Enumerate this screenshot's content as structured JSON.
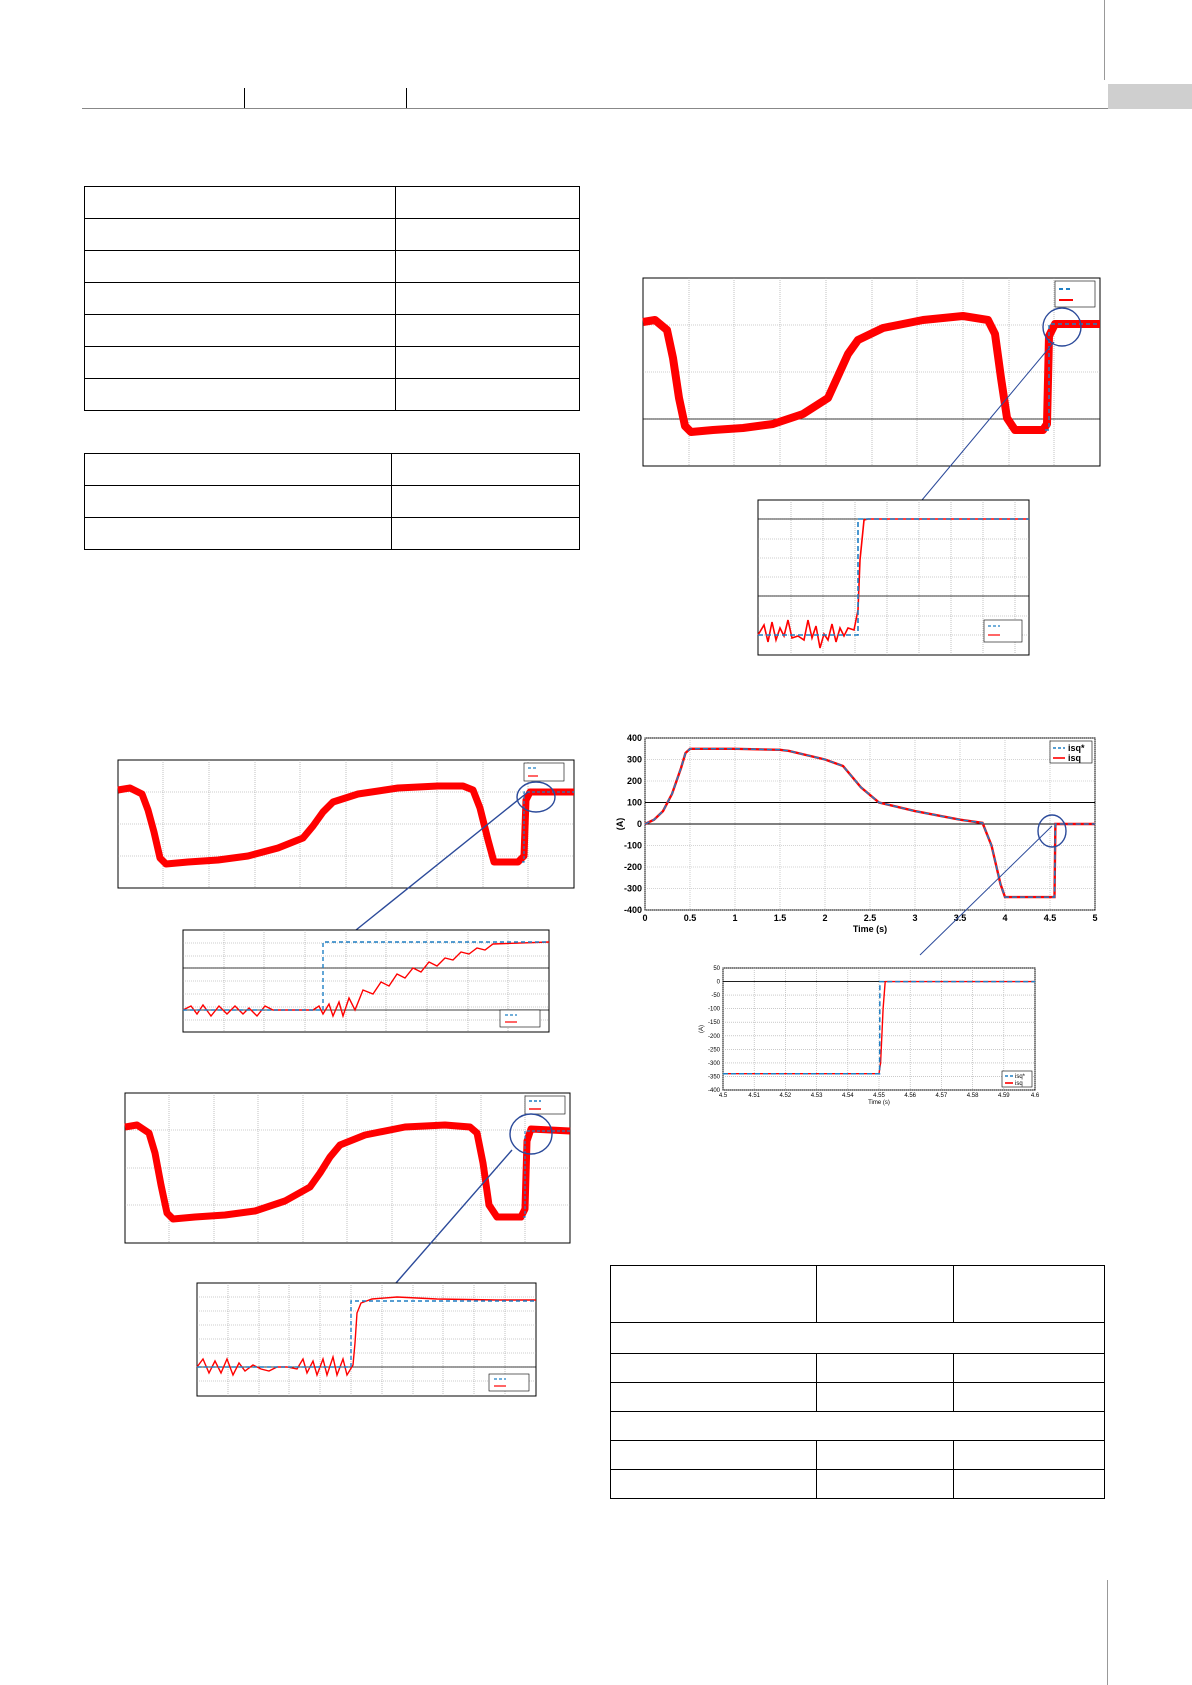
{
  "colors": {
    "reference": "#1f7fc4",
    "measured": "#ff0000",
    "zoom_line": "#2b4a9a",
    "header_tab": "#cfcfcf"
  },
  "chart_data": [
    {
      "type": "line",
      "ylabel": "(A)",
      "xlabel": "Time (s)",
      "xlim": [
        0,
        5
      ],
      "ylim": [
        -400,
        400
      ],
      "xticks": [
        "0",
        "0.5",
        "1",
        "1.5",
        "2",
        "2.5",
        "3",
        "3.5",
        "4",
        "4.5",
        "5"
      ],
      "yticks": [
        "400",
        "300",
        "200",
        "100",
        "0",
        "-100",
        "-200",
        "-300",
        "-400"
      ],
      "legend": "top-right",
      "series": [
        {
          "name": "isq*",
          "style": "dashed",
          "x": [
            0,
            0.1,
            0.2,
            0.3,
            0.4,
            0.45,
            0.5,
            1.0,
            1.5,
            1.6,
            2.0,
            2.2,
            2.4,
            2.6,
            3.0,
            3.5,
            3.75,
            3.85,
            3.95,
            4.0,
            4.5,
            4.55,
            4.56,
            5.0
          ],
          "y": [
            0,
            20,
            60,
            140,
            260,
            330,
            350,
            350,
            345,
            340,
            300,
            270,
            170,
            100,
            60,
            20,
            5,
            -100,
            -280,
            -340,
            -340,
            -340,
            0,
            0
          ]
        },
        {
          "name": "isq",
          "style": "solid",
          "x": [
            0,
            0.1,
            0.2,
            0.3,
            0.4,
            0.45,
            0.5,
            1.0,
            1.5,
            1.6,
            2.0,
            2.2,
            2.4,
            2.6,
            3.0,
            3.5,
            3.75,
            3.85,
            3.95,
            4.0,
            4.5,
            4.55,
            4.56,
            5.0
          ],
          "y": [
            0,
            20,
            60,
            140,
            260,
            330,
            350,
            350,
            345,
            340,
            300,
            270,
            170,
            100,
            60,
            20,
            5,
            -100,
            -280,
            -340,
            -340,
            -340,
            0,
            0
          ]
        }
      ]
    },
    {
      "type": "line",
      "ylabel": "(A)",
      "xlabel": "Time (s)",
      "xlim": [
        4.5,
        4.6
      ],
      "ylim": [
        -400,
        50
      ],
      "xticks": [
        "4.5",
        "4.51",
        "4.52",
        "4.53",
        "4.54",
        "4.55",
        "4.56",
        "4.57",
        "4.58",
        "4.59",
        "4.6"
      ],
      "yticks": [
        "50",
        "0",
        "-50",
        "-100",
        "-150",
        "-200",
        "-250",
        "-300",
        "-350",
        "-400"
      ],
      "legend": "bottom-right",
      "series": [
        {
          "name": "isq*",
          "style": "dashed",
          "x": [
            4.5,
            4.5502,
            4.5503,
            4.6
          ],
          "y": [
            -340,
            -340,
            0,
            0
          ]
        },
        {
          "name": "isq",
          "style": "solid",
          "x": [
            4.5,
            4.55,
            4.5505,
            4.5513,
            4.552,
            4.6
          ],
          "y": [
            -340,
            -340,
            -300,
            -100,
            0,
            0
          ]
        }
      ]
    }
  ]
}
